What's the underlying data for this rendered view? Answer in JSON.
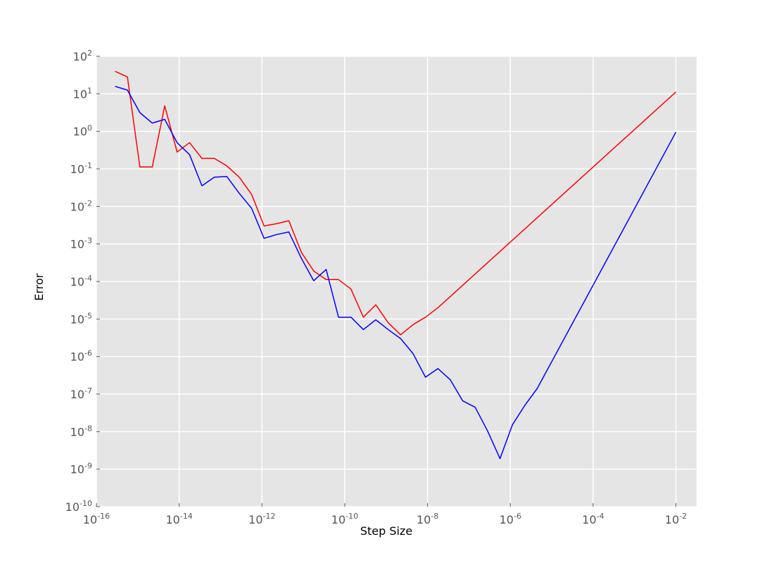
{
  "chart_data": {
    "type": "line",
    "title": "",
    "xlabel": "Step Size",
    "ylabel": "Error",
    "xscale": "log",
    "yscale": "log",
    "xlim_exp": [
      -16,
      -1.5
    ],
    "ylim_exp": [
      -10,
      2
    ],
    "xticks": [
      {
        "base": "10",
        "exp": "-16",
        "value": -16
      },
      {
        "base": "10",
        "exp": "-14",
        "value": -14
      },
      {
        "base": "10",
        "exp": "-12",
        "value": -12
      },
      {
        "base": "10",
        "exp": "-10",
        "value": -10
      },
      {
        "base": "10",
        "exp": "-8",
        "value": -8
      },
      {
        "base": "10",
        "exp": "-6",
        "value": -6
      },
      {
        "base": "10",
        "exp": "-4",
        "value": -4
      },
      {
        "base": "10",
        "exp": "-2",
        "value": -2
      }
    ],
    "yticks": [
      {
        "base": "10",
        "exp": "-10",
        "value": -10
      },
      {
        "base": "10",
        "exp": "-9",
        "value": -9
      },
      {
        "base": "10",
        "exp": "-8",
        "value": -8
      },
      {
        "base": "10",
        "exp": "-7",
        "value": -7
      },
      {
        "base": "10",
        "exp": "-6",
        "value": -6
      },
      {
        "base": "10",
        "exp": "-5",
        "value": -5
      },
      {
        "base": "10",
        "exp": "-4",
        "value": -4
      },
      {
        "base": "10",
        "exp": "-3",
        "value": -3
      },
      {
        "base": "10",
        "exp": "-2",
        "value": -2
      },
      {
        "base": "10",
        "exp": "-1",
        "value": -1
      },
      {
        "base": "10",
        "exp": "0",
        "value": 0
      },
      {
        "base": "10",
        "exp": "1",
        "value": 1
      },
      {
        "base": "10",
        "exp": "2",
        "value": 2
      }
    ],
    "grid": true,
    "background": "#e5e5e5",
    "grid_color": "#ffffff",
    "x_exp": [
      -15.55,
      -15.25,
      -14.95,
      -14.65,
      -14.35,
      -14.05,
      -13.75,
      -13.45,
      -13.15,
      -12.85,
      -12.55,
      -12.25,
      -11.95,
      -11.65,
      -11.35,
      -11.05,
      -10.75,
      -10.45,
      -10.15,
      -9.85,
      -9.55,
      -9.25,
      -8.95,
      -8.65,
      -8.35,
      -8.05,
      -7.75,
      -7.45,
      -7.15,
      -6.85,
      -6.55,
      -6.25,
      -5.95,
      -5.65,
      -5.35,
      -2
    ],
    "series": [
      {
        "name": "red",
        "color": "#ff0000",
        "y_exp": [
          1.6,
          1.45,
          -0.95,
          -0.95,
          0.68,
          -0.55,
          -0.3,
          -0.72,
          -0.72,
          -0.92,
          -1.22,
          -1.68,
          -2.52,
          -2.46,
          -2.38,
          -3.22,
          -3.72,
          -3.95,
          -3.95,
          -4.2,
          -4.95,
          -4.62,
          -5.1,
          -5.42,
          -5.15,
          -4.95,
          -4.7,
          -4.4,
          -4.1,
          -3.8,
          -3.5,
          -3.2,
          -2.9,
          -2.6,
          -2.3,
          1.05
        ]
      },
      {
        "name": "blue",
        "color": "#0000ff",
        "y_exp": [
          1.2,
          1.1,
          0.5,
          0.22,
          0.32,
          -0.3,
          -0.62,
          -1.45,
          -1.22,
          -1.2,
          -1.65,
          -2.05,
          -2.85,
          -2.75,
          -2.68,
          -3.38,
          -3.98,
          -3.68,
          -4.95,
          -4.95,
          -5.28,
          -5.02,
          -5.28,
          -5.52,
          -5.92,
          -6.55,
          -6.32,
          -6.62,
          -7.18,
          -7.35,
          -7.98,
          -8.72,
          -7.82,
          -7.3,
          -6.85,
          -0.02
        ]
      }
    ]
  }
}
